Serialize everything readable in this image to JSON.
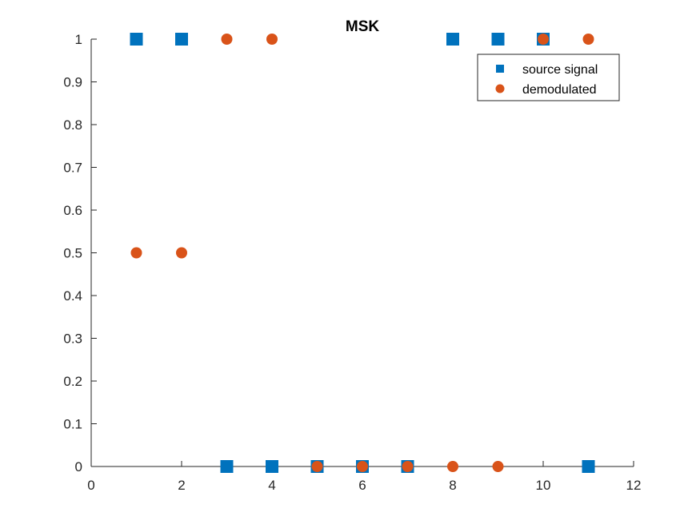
{
  "chart_data": {
    "type": "scatter",
    "title": "MSK",
    "xlabel": "",
    "ylabel": "",
    "xlim": [
      0,
      12
    ],
    "ylim": [
      0,
      1
    ],
    "xticks": [
      0,
      2,
      4,
      6,
      8,
      10,
      12
    ],
    "yticks": [
      0,
      0.1,
      0.2,
      0.3,
      0.4,
      0.5,
      0.6,
      0.7,
      0.8,
      0.9,
      1
    ],
    "ytick_labels": [
      "0",
      "0.1",
      "0.2",
      "0.3",
      "0.4",
      "0.5",
      "0.6",
      "0.7",
      "0.8",
      "0.9",
      "1"
    ],
    "grid": false,
    "legend_position": "top-right",
    "series": [
      {
        "name": "source signal",
        "marker": "square",
        "color": "#0072BD",
        "x": [
          1,
          2,
          3,
          4,
          5,
          6,
          7,
          8,
          9,
          10,
          11
        ],
        "y": [
          1,
          1,
          0,
          0,
          0,
          0,
          0,
          1,
          1,
          1,
          0
        ]
      },
      {
        "name": "demodulated",
        "marker": "circle",
        "color": "#D95319",
        "x": [
          1,
          2,
          3,
          4,
          5,
          6,
          7,
          8,
          9,
          10,
          11
        ],
        "y": [
          0.5,
          0.5,
          1,
          1,
          0,
          0,
          0,
          0,
          0,
          1,
          1
        ]
      }
    ]
  }
}
